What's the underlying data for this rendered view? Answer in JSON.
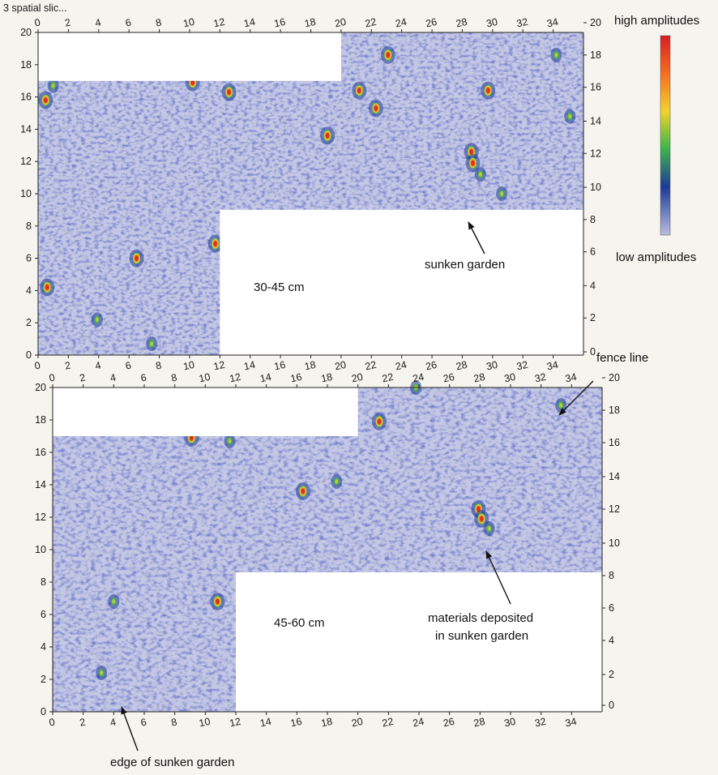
{
  "chart_data": [
    {
      "type": "heatmap",
      "depth_label": "30-45 cm",
      "xlim": [
        0,
        36
      ],
      "ylim": [
        0,
        20
      ],
      "x_ticks": [
        "0",
        "2",
        "4",
        "6",
        "8",
        "10",
        "12",
        "14",
        "16",
        "18",
        "20",
        "22",
        "24",
        "26",
        "28",
        "30",
        "32",
        "34"
      ],
      "y_ticks": [
        "0",
        "2",
        "4",
        "6",
        "8",
        "10",
        "12",
        "14",
        "16",
        "18",
        "20"
      ],
      "x_tick_values": [
        0,
        2,
        4,
        6,
        8,
        10,
        12,
        14,
        16,
        18,
        20,
        22,
        24,
        26,
        28,
        30,
        32,
        34
      ],
      "y_tick_values": [
        0,
        2,
        4,
        6,
        8,
        10,
        12,
        14,
        16,
        18,
        20
      ],
      "right_ticks": [
        "0",
        "2",
        "4",
        "6",
        "8",
        "10",
        "12",
        "14",
        "16",
        "18",
        "20"
      ],
      "right_tick_values": [
        0.2,
        2.3,
        4.3,
        6.4,
        8.4,
        10.4,
        12.5,
        14.5,
        16.6,
        18.6,
        20.6
      ],
      "no_data_regions": [
        {
          "x": [
            0,
            20
          ],
          "y": [
            17,
            20
          ]
        },
        {
          "x": [
            12,
            36
          ],
          "y": [
            0,
            9
          ]
        }
      ],
      "anomalies": [
        {
          "x": 0.6,
          "y": 4.2,
          "level": "high"
        },
        {
          "x": 0.5,
          "y": 15.8,
          "level": "high"
        },
        {
          "x": 1.0,
          "y": 16.7,
          "level": "medium"
        },
        {
          "x": 3.9,
          "y": 2.2,
          "level": "medium"
        },
        {
          "x": 6.5,
          "y": 6.0,
          "level": "high"
        },
        {
          "x": 7.5,
          "y": 0.7,
          "level": "medium"
        },
        {
          "x": 10.2,
          "y": 16.9,
          "level": "high"
        },
        {
          "x": 11.7,
          "y": 6.9,
          "level": "high"
        },
        {
          "x": 12.6,
          "y": 16.3,
          "level": "high"
        },
        {
          "x": 19.1,
          "y": 13.6,
          "level": "high"
        },
        {
          "x": 21.2,
          "y": 16.4,
          "level": "high"
        },
        {
          "x": 22.3,
          "y": 15.3,
          "level": "high"
        },
        {
          "x": 23.1,
          "y": 18.6,
          "level": "high"
        },
        {
          "x": 29.7,
          "y": 16.4,
          "level": "high"
        },
        {
          "x": 28.6,
          "y": 12.6,
          "level": "high"
        },
        {
          "x": 28.7,
          "y": 11.9,
          "level": "high"
        },
        {
          "x": 29.2,
          "y": 11.2,
          "level": "medium"
        },
        {
          "x": 30.6,
          "y": 10.0,
          "level": "medium"
        },
        {
          "x": 34.2,
          "y": 18.6,
          "level": "medium"
        },
        {
          "x": 35.1,
          "y": 14.8,
          "level": "medium"
        }
      ],
      "annotations": [
        {
          "text": "sunken garden",
          "target": [
            29.1,
            10.6
          ]
        }
      ]
    },
    {
      "type": "heatmap",
      "depth_label": "45-60 cm",
      "xlim": [
        0,
        36
      ],
      "ylim": [
        0,
        20
      ],
      "x_ticks": [
        "0",
        "2",
        "4",
        "6",
        "8",
        "10",
        "12",
        "14",
        "16",
        "18",
        "20",
        "22",
        "24",
        "26",
        "28",
        "30",
        "32",
        "34"
      ],
      "y_ticks": [
        "0",
        "2",
        "4",
        "6",
        "8",
        "10",
        "12",
        "14",
        "16",
        "18",
        "20"
      ],
      "x_tick_values": [
        0,
        2,
        4,
        6,
        8,
        10,
        12,
        14,
        16,
        18,
        20,
        22,
        24,
        26,
        28,
        30,
        32,
        34
      ],
      "y_tick_values": [
        0,
        2,
        4,
        6,
        8,
        10,
        12,
        14,
        16,
        18,
        20
      ],
      "right_ticks": [
        "0",
        "2",
        "4",
        "6",
        "8",
        "10",
        "12",
        "14",
        "16",
        "18",
        "20"
      ],
      "right_tick_values": [
        0.4,
        2.3,
        4.4,
        6.4,
        8.4,
        10.4,
        12.5,
        14.5,
        16.6,
        18.6,
        20.6
      ],
      "no_data_regions": [
        {
          "x": [
            0,
            20
          ],
          "y": [
            17,
            20
          ]
        },
        {
          "x": [
            12,
            36
          ],
          "y": [
            0,
            8.6
          ]
        }
      ],
      "anomalies": [
        {
          "x": 9.1,
          "y": 16.9,
          "level": "high"
        },
        {
          "x": 11.6,
          "y": 16.7,
          "level": "medium"
        },
        {
          "x": 10.8,
          "y": 6.8,
          "level": "high"
        },
        {
          "x": 4.0,
          "y": 6.8,
          "level": "medium"
        },
        {
          "x": 3.2,
          "y": 2.4,
          "level": "medium"
        },
        {
          "x": 16.4,
          "y": 13.6,
          "level": "high"
        },
        {
          "x": 18.6,
          "y": 14.2,
          "level": "medium"
        },
        {
          "x": 21.4,
          "y": 17.9,
          "level": "high"
        },
        {
          "x": 23.8,
          "y": 20.0,
          "level": "medium"
        },
        {
          "x": 27.9,
          "y": 12.5,
          "level": "high"
        },
        {
          "x": 28.1,
          "y": 11.9,
          "level": "high"
        },
        {
          "x": 28.6,
          "y": 11.3,
          "level": "medium"
        },
        {
          "x": 33.3,
          "y": 18.9,
          "level": "medium"
        }
      ],
      "annotations": [
        {
          "text": "fence line",
          "target": [
            33.0,
            18.9
          ]
        },
        {
          "text": "materials deposited\nin sunken garden",
          "target": [
            28.9,
            11.4
          ]
        },
        {
          "text": "edge of sunken garden",
          "target": [
            4.0,
            2.0
          ]
        }
      ]
    }
  ],
  "colorbar": {
    "top_label": "high amplitudes",
    "bottom_label": "low amplitudes",
    "colors": [
      "#d81d24",
      "#f46a21",
      "#f4d22c",
      "#40b84a",
      "#1d3a98",
      "#b9bde0"
    ]
  },
  "texts": {
    "top_fragment": "3 spatial slic...",
    "ann_sunken_garden": "sunken garden",
    "ann_fence_line": "fence line",
    "ann_materials_line1": "materials deposited",
    "ann_materials_line2": "in sunken garden",
    "ann_edge": "edge of sunken garden"
  }
}
